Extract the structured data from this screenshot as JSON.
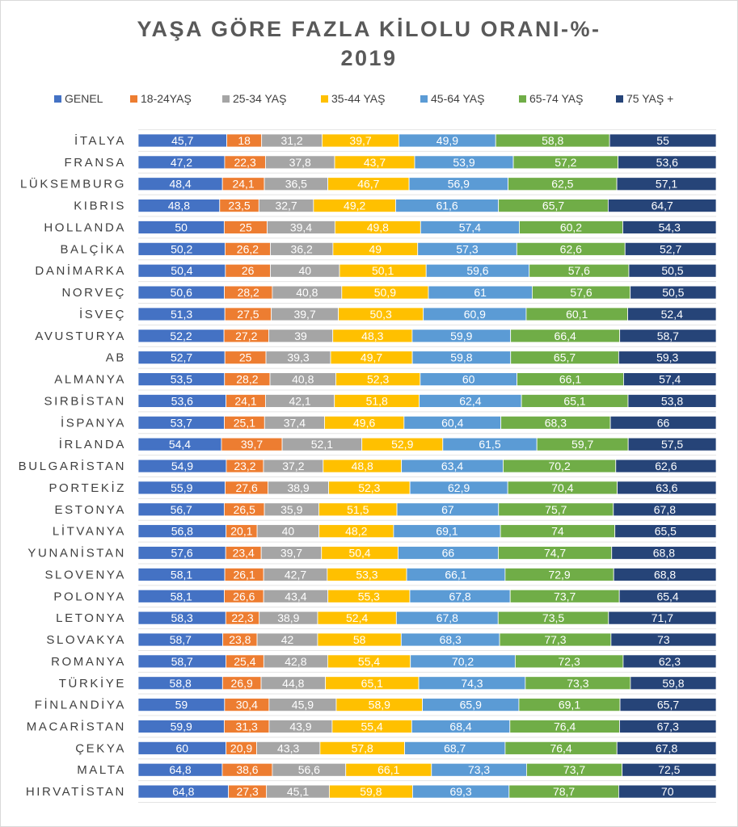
{
  "chart_data": {
    "type": "bar",
    "stacked": true,
    "orientation": "horizontal",
    "title_line1": "YAŞA GÖRE FAZLA KİLOLU ORANI-%-",
    "title_line2": "2019",
    "legend_position": "top",
    "categories": [
      "İTALYA",
      "FRANSA",
      "LÜKSEMBURG",
      "KIBRIS",
      "HOLLANDA",
      "BALÇİKA",
      "DANİMARKA",
      "NORVEÇ",
      "İSVEÇ",
      "AVUSTURYA",
      "AB",
      "ALMANYA",
      "SIRBİSTAN",
      "İSPANYA",
      "İRLANDA",
      "BULGARİSTAN",
      "PORTEKİZ",
      "ESTONYA",
      "LİTVANYA",
      "YUNANİSTAN",
      "SLOVENYA",
      "POLONYA",
      "LETONYA",
      "SLOVAKYA",
      "ROMANYA",
      "TÜRKİYE",
      "FİNLANDİYA",
      "MACARİSTAN",
      "ÇEKYA",
      "MALTA",
      "HIRVATİSTAN"
    ],
    "series": [
      {
        "name": "GENEL",
        "color": "#4472c4",
        "label_color": "#ffffff",
        "values": [
          45.7,
          47.2,
          48.4,
          48.8,
          50,
          50.2,
          50.4,
          50.6,
          51.3,
          52.2,
          52.7,
          53.5,
          53.6,
          53.7,
          54.4,
          54.9,
          55.9,
          56.7,
          56.8,
          57.6,
          58.1,
          58.1,
          58.3,
          58.7,
          58.7,
          58.8,
          59,
          59.9,
          60,
          64.8,
          64.8
        ]
      },
      {
        "name": "18-24YAŞ",
        "color": "#ed7d31",
        "label_color": "#ffffff",
        "values": [
          18,
          22.3,
          24.1,
          23.5,
          25,
          26.2,
          26,
          28.2,
          27.5,
          27.2,
          25,
          28.2,
          24.1,
          25.1,
          39.7,
          23.2,
          27.6,
          26.5,
          20.1,
          23.4,
          26.1,
          26.6,
          22.3,
          23.8,
          25.4,
          26.9,
          30.4,
          31.3,
          20.9,
          38.6,
          27.3
        ]
      },
      {
        "name": "25-34 YAŞ",
        "color": "#a5a5a5",
        "label_color": "#ffffff",
        "values": [
          31.2,
          37.8,
          36.5,
          32.7,
          39.4,
          36.2,
          40,
          40.8,
          39.7,
          39,
          39.3,
          40.8,
          42.1,
          37.4,
          52.1,
          37.2,
          38.9,
          35.9,
          40,
          39.7,
          42.7,
          43.4,
          38.9,
          42,
          42.8,
          44.8,
          45.9,
          43.9,
          43.3,
          56.6,
          45.1
        ]
      },
      {
        "name": "35-44 YAŞ",
        "color": "#ffc000",
        "label_color": "#ffffff",
        "values": [
          39.7,
          43.7,
          46.7,
          49.2,
          49.8,
          49,
          50.1,
          50.9,
          50.3,
          48.3,
          49.7,
          52.3,
          51.8,
          49.6,
          52.9,
          48.8,
          52.3,
          51.5,
          48.2,
          50.4,
          53.3,
          55.3,
          52.4,
          58,
          55.4,
          65.1,
          58.9,
          55.4,
          57.8,
          66.1,
          59.8
        ]
      },
      {
        "name": "45-64 YAŞ",
        "color": "#5b9bd5",
        "label_color": "#ffffff",
        "values": [
          49.9,
          53.9,
          56.9,
          61.6,
          57.4,
          57.3,
          59.6,
          61,
          60.9,
          59.9,
          59.8,
          60,
          62.4,
          60.4,
          61.5,
          63.4,
          62.9,
          67,
          69.1,
          66,
          66.1,
          67.8,
          67.8,
          68.3,
          70.2,
          74.3,
          65.9,
          68.4,
          68.7,
          73.3,
          69.3
        ]
      },
      {
        "name": "65-74 YAŞ",
        "color": "#70ad47",
        "label_color": "#ffffff",
        "values": [
          58.8,
          57.2,
          62.5,
          65.7,
          60.2,
          62.6,
          57.6,
          57.6,
          60.1,
          66.4,
          65.7,
          66.1,
          65.1,
          68.3,
          59.7,
          70.2,
          70.4,
          75.7,
          74,
          74.7,
          72.9,
          73.7,
          73.5,
          77.3,
          72.3,
          73.3,
          69.1,
          76.4,
          76.4,
          73.7,
          78.7
        ]
      },
      {
        "name": "75 YAŞ +",
        "color": "#264478",
        "label_color": "#ffffff",
        "values": [
          55,
          53.6,
          57.1,
          64.7,
          54.3,
          52.7,
          50.5,
          50.5,
          52.4,
          58.7,
          59.3,
          57.4,
          53.8,
          66,
          57.5,
          62.6,
          63.6,
          67.8,
          65.5,
          68.8,
          68.8,
          65.4,
          71.7,
          73,
          62.3,
          59.8,
          65.7,
          67.3,
          67.8,
          72.5,
          70
        ]
      }
    ]
  }
}
